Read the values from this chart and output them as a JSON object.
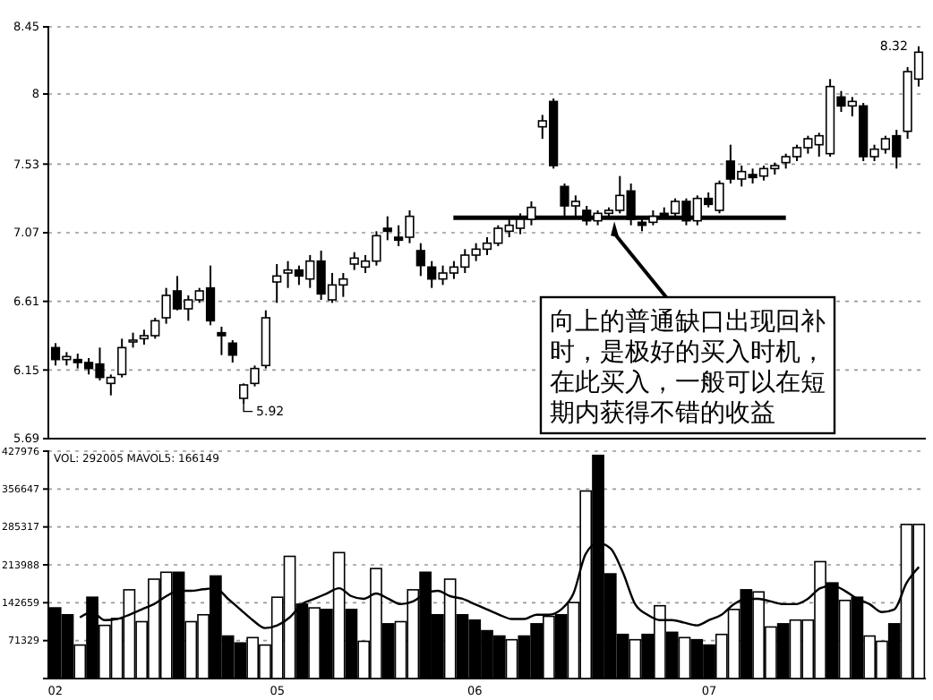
{
  "chart_data": [
    {
      "type": "candlestick",
      "categories": [
        null,
        null,
        null,
        null,
        null,
        null,
        null,
        null,
        null,
        null,
        null,
        null,
        null,
        null,
        null,
        null,
        null,
        null,
        null,
        null,
        null,
        null,
        null,
        null,
        null,
        null,
        null,
        null,
        null,
        null,
        null,
        null,
        null,
        null,
        null,
        null,
        null,
        null,
        null,
        null,
        null,
        null,
        null,
        null,
        null,
        null,
        null,
        null,
        null,
        null,
        null,
        null,
        null,
        null,
        null,
        null,
        null,
        null,
        null,
        null,
        null,
        null,
        null,
        null,
        null,
        null,
        null,
        null,
        null,
        null,
        null,
        null,
        null,
        null,
        null,
        null,
        null,
        null,
        null
      ],
      "ohlc": [
        [
          6.3,
          6.33,
          6.18,
          6.22
        ],
        [
          6.22,
          6.27,
          6.18,
          6.24
        ],
        [
          6.22,
          6.26,
          6.16,
          6.2
        ],
        [
          6.2,
          6.23,
          6.12,
          6.16
        ],
        [
          6.19,
          6.3,
          6.08,
          6.1
        ],
        [
          6.06,
          6.12,
          5.98,
          6.1
        ],
        [
          6.12,
          6.36,
          6.1,
          6.3
        ],
        [
          6.34,
          6.4,
          6.3,
          6.35
        ],
        [
          6.36,
          6.42,
          6.32,
          6.38
        ],
        [
          6.38,
          6.5,
          6.36,
          6.48
        ],
        [
          6.5,
          6.7,
          6.46,
          6.65
        ],
        [
          6.68,
          6.78,
          6.55,
          6.56
        ],
        [
          6.56,
          6.65,
          6.48,
          6.62
        ],
        [
          6.62,
          6.7,
          6.6,
          6.68
        ],
        [
          6.7,
          6.85,
          6.45,
          6.48
        ],
        [
          6.4,
          6.44,
          6.25,
          6.38
        ],
        [
          6.33,
          6.35,
          6.2,
          6.25
        ],
        [
          5.96,
          6.06,
          5.92,
          6.05
        ],
        [
          6.06,
          6.18,
          6.04,
          6.16
        ],
        [
          6.18,
          6.55,
          6.16,
          6.5
        ],
        [
          6.74,
          6.86,
          6.6,
          6.78
        ],
        [
          6.8,
          6.88,
          6.7,
          6.82
        ],
        [
          6.82,
          6.85,
          6.72,
          6.78
        ],
        [
          6.76,
          6.92,
          6.7,
          6.88
        ],
        [
          6.88,
          6.95,
          6.62,
          6.66
        ],
        [
          6.62,
          6.8,
          6.6,
          6.72
        ],
        [
          6.72,
          6.8,
          6.64,
          6.76
        ],
        [
          6.86,
          6.94,
          6.82,
          6.9
        ],
        [
          6.84,
          6.92,
          6.8,
          6.88
        ],
        [
          6.88,
          7.08,
          6.85,
          7.05
        ],
        [
          7.1,
          7.18,
          7.02,
          7.08
        ],
        [
          7.04,
          7.12,
          6.98,
          7.02
        ],
        [
          7.04,
          7.22,
          7.0,
          7.18
        ],
        [
          6.95,
          7.0,
          6.78,
          6.85
        ],
        [
          6.84,
          6.88,
          6.7,
          6.76
        ],
        [
          6.76,
          6.85,
          6.72,
          6.8
        ],
        [
          6.8,
          6.88,
          6.76,
          6.84
        ],
        [
          6.84,
          6.96,
          6.8,
          6.92
        ],
        [
          6.92,
          7.0,
          6.88,
          6.96
        ],
        [
          6.96,
          7.04,
          6.92,
          7.0
        ],
        [
          7.0,
          7.12,
          6.98,
          7.1
        ],
        [
          7.08,
          7.16,
          7.04,
          7.12
        ],
        [
          7.1,
          7.2,
          7.06,
          7.16
        ],
        [
          7.16,
          7.28,
          7.12,
          7.24
        ],
        [
          7.78,
          7.86,
          7.7,
          7.82
        ],
        [
          7.95,
          7.97,
          7.5,
          7.52
        ],
        [
          7.38,
          7.4,
          7.16,
          7.25
        ],
        [
          7.25,
          7.32,
          7.18,
          7.28
        ],
        [
          7.22,
          7.25,
          7.12,
          7.15
        ],
        [
          7.15,
          7.22,
          7.12,
          7.2
        ],
        [
          7.2,
          7.24,
          7.16,
          7.22
        ],
        [
          7.22,
          7.45,
          7.2,
          7.32
        ],
        [
          7.35,
          7.4,
          7.12,
          7.16
        ],
        [
          7.14,
          7.16,
          7.08,
          7.12
        ],
        [
          7.14,
          7.22,
          7.12,
          7.18
        ],
        [
          7.2,
          7.24,
          7.16,
          7.18
        ],
        [
          7.2,
          7.3,
          7.18,
          7.28
        ],
        [
          7.28,
          7.3,
          7.12,
          7.15
        ],
        [
          7.15,
          7.32,
          7.12,
          7.3
        ],
        [
          7.3,
          7.34,
          7.24,
          7.26
        ],
        [
          7.22,
          7.42,
          7.2,
          7.4
        ],
        [
          7.55,
          7.66,
          7.4,
          7.43
        ],
        [
          7.43,
          7.52,
          7.38,
          7.48
        ],
        [
          7.46,
          7.5,
          7.4,
          7.44
        ],
        [
          7.45,
          7.52,
          7.42,
          7.5
        ],
        [
          7.5,
          7.54,
          7.46,
          7.52
        ],
        [
          7.54,
          7.6,
          7.5,
          7.58
        ],
        [
          7.58,
          7.66,
          7.55,
          7.64
        ],
        [
          7.64,
          7.72,
          7.6,
          7.7
        ],
        [
          7.66,
          7.74,
          7.58,
          7.72
        ],
        [
          7.6,
          8.1,
          7.58,
          8.05
        ],
        [
          7.98,
          8.02,
          7.88,
          7.92
        ],
        [
          7.92,
          7.98,
          7.85,
          7.95
        ],
        [
          7.92,
          7.94,
          7.55,
          7.58
        ],
        [
          7.58,
          7.66,
          7.55,
          7.63
        ],
        [
          7.63,
          7.72,
          7.6,
          7.7
        ],
        [
          7.72,
          7.76,
          7.5,
          7.58
        ],
        [
          7.75,
          8.18,
          7.7,
          8.15
        ],
        [
          8.1,
          8.32,
          8.05,
          8.28
        ]
      ],
      "ylim": [
        5.69,
        8.45
      ],
      "yticks": [
        5.69,
        6.15,
        6.61,
        7.07,
        7.53,
        8.0,
        8.45
      ],
      "grid": "y",
      "tick_labels": "y",
      "ref_lines": [
        {
          "axis": "y",
          "value": 7.17,
          "color": "#000000"
        }
      ],
      "annotations": [
        "5.92",
        "8.32",
        "向上的普通缺口出现回补时，是极好的买入时机，在此买入，一般可以在短期内获得不错的收益"
      ]
    },
    {
      "type": "bar",
      "categories": [
        "02",
        null,
        null,
        null,
        null,
        null,
        null,
        null,
        null,
        null,
        null,
        null,
        null,
        null,
        null,
        null,
        null,
        null,
        "05",
        null,
        null,
        null,
        null,
        null,
        null,
        null,
        null,
        null,
        null,
        null,
        null,
        null,
        null,
        null,
        "06",
        null,
        null,
        null,
        null,
        null,
        null,
        null,
        null,
        null,
        null,
        null,
        null,
        null,
        null,
        null,
        null,
        null,
        null,
        "07",
        null,
        null,
        null,
        null,
        null,
        null,
        null,
        null,
        null,
        null,
        null,
        null,
        null,
        null,
        null,
        null,
        null
      ],
      "series": [
        {
          "values": [
            133000,
            120000,
            63000,
            153000,
            100000,
            113000,
            167000,
            107000,
            187000,
            200000,
            200000,
            107000,
            120000,
            193000,
            80000,
            67000,
            77000,
            63000,
            153000,
            230000,
            140000,
            133000,
            130000,
            237000,
            130000,
            70000,
            207000,
            103000,
            107000,
            167000,
            200000,
            120000,
            187000,
            120000,
            110000,
            90000,
            80000,
            73000,
            80000,
            103000,
            117000,
            120000,
            143000,
            353000,
            420000,
            197000,
            83000,
            73000,
            83000,
            137000,
            87000,
            77000,
            73000,
            63000,
            83000,
            130000,
            167000,
            163000,
            97000,
            103000,
            110000,
            110000,
            220000,
            180000,
            147000,
            153000,
            80000,
            70000,
            103000,
            290000,
            290000
          ],
          "colors": [
            "#000000",
            "#000000",
            "#ffffff",
            "#000000",
            "#ffffff",
            "#ffffff",
            "#ffffff",
            "#ffffff",
            "#ffffff",
            "#ffffff",
            "#000000",
            "#ffffff",
            "#ffffff",
            "#000000",
            "#000000",
            "#000000",
            "#ffffff",
            "#ffffff",
            "#ffffff",
            "#ffffff",
            "#000000",
            "#ffffff",
            "#000000",
            "#ffffff",
            "#000000",
            "#ffffff",
            "#ffffff",
            "#000000",
            "#ffffff",
            "#ffffff",
            "#000000",
            "#000000",
            "#ffffff",
            "#000000",
            "#000000",
            "#000000",
            "#000000",
            "#ffffff",
            "#000000",
            "#000000",
            "#ffffff",
            "#000000",
            "#ffffff",
            "#ffffff",
            "#000000",
            "#000000",
            "#000000",
            "#ffffff",
            "#000000",
            "#ffffff",
            "#000000",
            "#ffffff",
            "#000000",
            "#000000",
            "#ffffff",
            "#ffffff",
            "#000000",
            "#ffffff",
            "#ffffff",
            "#000000",
            "#ffffff",
            "#ffffff",
            "#ffffff",
            "#000000",
            "#ffffff",
            "#000000",
            "#ffffff",
            "#ffffff",
            "#000000",
            "#ffffff",
            "#ffffff"
          ]
        },
        {
          "type": "line",
          "color": "#000000",
          "values": [
            null,
            null,
            115000,
            125000,
            110000,
            112000,
            120000,
            130000,
            140000,
            155000,
            165000,
            165000,
            168000,
            170000,
            150000,
            130000,
            110000,
            95000,
            100000,
            115000,
            140000,
            150000,
            160000,
            170000,
            155000,
            150000,
            160000,
            150000,
            140000,
            145000,
            160000,
            165000,
            155000,
            150000,
            140000,
            130000,
            120000,
            112000,
            112000,
            120000,
            120000,
            130000,
            160000,
            235000,
            255000,
            245000,
            200000,
            140000,
            120000,
            110000,
            110000,
            105000,
            100000,
            110000,
            120000,
            140000,
            150000,
            150000,
            145000,
            140000,
            140000,
            150000,
            170000,
            175000,
            165000,
            150000,
            140000,
            125000,
            130000,
            180000,
            210000
          ]
        }
      ],
      "ylim": [
        0,
        427976
      ],
      "yticks": [
        71329,
        142659,
        213988,
        285317,
        356647,
        427976
      ],
      "grid": "y",
      "annotations": [
        "VOL: 292005 MAVOL5: 166149"
      ]
    }
  ]
}
